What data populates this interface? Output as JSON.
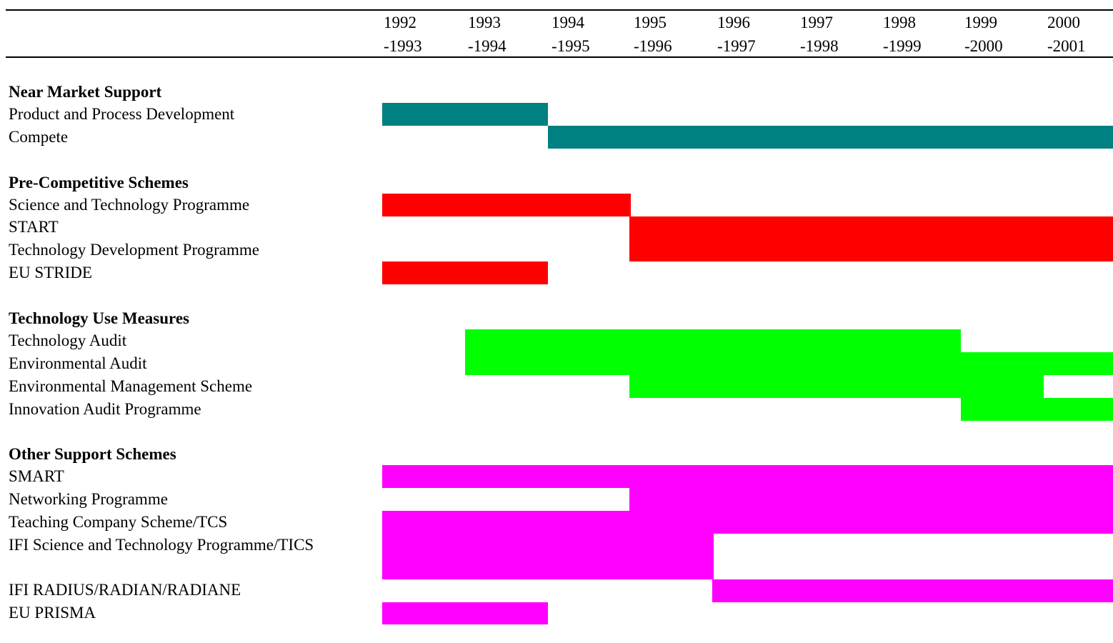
{
  "header": {
    "columns": [
      {
        "start": "1992",
        "end": "-1993"
      },
      {
        "start": "1993",
        "end": "-1994"
      },
      {
        "start": "1994",
        "end": "-1995"
      },
      {
        "start": "1995",
        "end": "-1996"
      },
      {
        "start": "1996",
        "end": "-1997"
      },
      {
        "start": "1997",
        "end": "-1998"
      },
      {
        "start": "1998",
        "end": "-1999"
      },
      {
        "start": "1999",
        "end": "-2000"
      },
      {
        "start": "2000",
        "end": "-2001"
      }
    ]
  },
  "groups": [
    {
      "title": "Near Market Support",
      "rows": [
        "Product and Process Development",
        "Compete"
      ]
    },
    {
      "title": "Pre-Competitive Schemes",
      "rows": [
        "Science and Technology Programme",
        "START",
        "Technology Development Programme",
        "EU STRIDE"
      ]
    },
    {
      "title": "Technology Use Measures",
      "rows": [
        "Technology Audit",
        "Environmental Audit",
        "Environmental Management Scheme",
        "Innovation Audit Programme"
      ]
    },
    {
      "title": "Other Support Schemes",
      "rows": [
        "SMART",
        "Networking Programme",
        "Teaching Company Scheme/TCS",
        "IFI Science and Technology Programme/TICS",
        "IFI RADIUS/RADIAN/RADIANE",
        "EU PRISMA"
      ]
    }
  ]
}
